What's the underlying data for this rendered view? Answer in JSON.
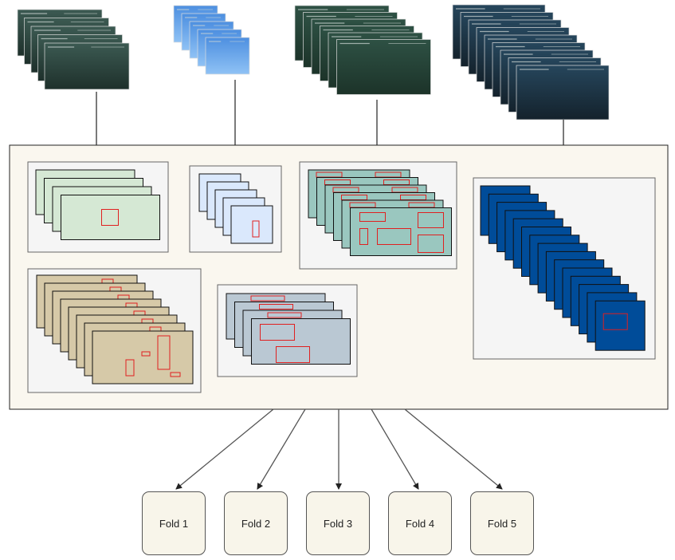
{
  "folds": [
    {
      "label": "Fold 1"
    },
    {
      "label": "Fold 2"
    },
    {
      "label": "Fold 3"
    },
    {
      "label": "Fold 4"
    },
    {
      "label": "Fold 5"
    }
  ],
  "colors": {
    "container_fill": "#faf7ef",
    "group_fill": "#f5f5f5",
    "annotation_box": "#e02020",
    "fold_fill": "#f8f5ea",
    "dataset_1_frames": "#d5e8d4",
    "dataset_2_frames": "#dae8fc",
    "dataset_3_frames": "#9ac7bf",
    "dataset_4_frames": "#004c99",
    "dataset_5_frames": "#d6c9a8",
    "dataset_6_frames": "#bac8d3"
  },
  "icons": {
    "video_stack": "underwater-video-frames-icon"
  }
}
